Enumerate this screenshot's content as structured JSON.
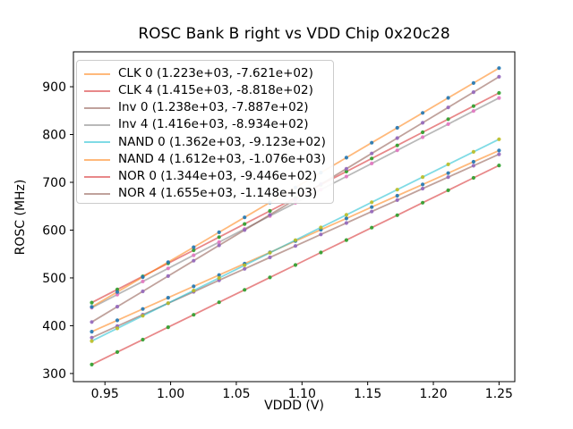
{
  "title": "ROSC Bank B right vs VDD Chip 0x20c28",
  "x_axis": {
    "label": "VDDD (V)",
    "tick_labels": [
      "0.95",
      "1.00",
      "1.05",
      "1.10",
      "1.15",
      "1.20",
      "1.25"
    ],
    "tick_values": [
      0.95,
      1.0,
      1.05,
      1.1,
      1.15,
      1.2,
      1.25
    ],
    "range": [
      0.926,
      1.262
    ]
  },
  "y_axis": {
    "label": "ROSC (MHz)",
    "tick_labels": [
      "300",
      "400",
      "500",
      "600",
      "700",
      "800",
      "900"
    ],
    "tick_values": [
      300,
      400,
      500,
      600,
      700,
      800,
      900
    ],
    "range": [
      283,
      973
    ]
  },
  "chart_data": {
    "type": "scatter",
    "note": "ring-oscillator frequency vs supply voltage; each series shows measured points lying on a linear fit y = slope*x + intercept (slope, intercept shown in legend)",
    "x": [
      0.94,
      0.9594,
      0.9788,
      0.9981,
      1.0175,
      1.0369,
      1.0563,
      1.0756,
      1.095,
      1.1144,
      1.1338,
      1.1531,
      1.1725,
      1.1919,
      1.2113,
      1.2306,
      1.25
    ],
    "grid": false,
    "legend_position": "upper left",
    "series": [
      {
        "name": "CLK 0",
        "legend_label": "CLK 0 (1.223e+03, -7.621e+02)",
        "slope": 1223,
        "intercept": -762.1,
        "y_at_x_min": 387.5,
        "y_at_x_max": 766.7,
        "line_color": "#ff7f0e",
        "marker_color": "#1f77b4"
      },
      {
        "name": "CLK 4",
        "legend_label": "CLK 4 (1.415e+03, -8.818e+02)",
        "slope": 1415,
        "intercept": -881.8,
        "y_at_x_min": 448.3,
        "y_at_x_max": 886.9,
        "line_color": "#d62728",
        "marker_color": "#2ca02c"
      },
      {
        "name": "Inv 0",
        "legend_label": "Inv 0 (1.238e+03, -7.887e+02)",
        "slope": 1238,
        "intercept": -788.7,
        "y_at_x_min": 375.0,
        "y_at_x_max": 758.8,
        "line_color": "#8c564b",
        "marker_color": "#9467bd"
      },
      {
        "name": "Inv 4",
        "legend_label": "Inv 4 (1.416e+03, -8.934e+02)",
        "slope": 1416,
        "intercept": -893.4,
        "y_at_x_min": 437.6,
        "y_at_x_max": 876.6,
        "line_color": "#7f7f7f",
        "marker_color": "#e377c2"
      },
      {
        "name": "NAND 0",
        "legend_label": "NAND 0 (1.362e+03, -9.123e+02)",
        "slope": 1362,
        "intercept": -912.3,
        "y_at_x_min": 368.0,
        "y_at_x_max": 790.2,
        "line_color": "#17becf",
        "marker_color": "#bcbd22"
      },
      {
        "name": "NAND 4",
        "legend_label": "NAND 4 (1.612e+03, -1.076e+03)",
        "slope": 1612,
        "intercept": -1076.0,
        "y_at_x_min": 439.3,
        "y_at_x_max": 939.0,
        "line_color": "#ff7f0e",
        "marker_color": "#1f77b4"
      },
      {
        "name": "NOR 0",
        "legend_label": "NOR 0 (1.344e+03, -9.446e+02)",
        "slope": 1344,
        "intercept": -944.6,
        "y_at_x_min": 318.8,
        "y_at_x_max": 735.4,
        "line_color": "#d62728",
        "marker_color": "#2ca02c"
      },
      {
        "name": "NOR 4",
        "legend_label": "NOR 4 (1.655e+03, -1.148e+03)",
        "slope": 1655,
        "intercept": -1148.0,
        "y_at_x_min": 407.7,
        "y_at_x_max": 920.8,
        "line_color": "#8c564b",
        "marker_color": "#9467bd"
      }
    ]
  },
  "style": {
    "line_alpha": 0.55,
    "marker_alpha": 0.9,
    "axis_color": "#000000",
    "legend_border_color": "#cccccc"
  }
}
